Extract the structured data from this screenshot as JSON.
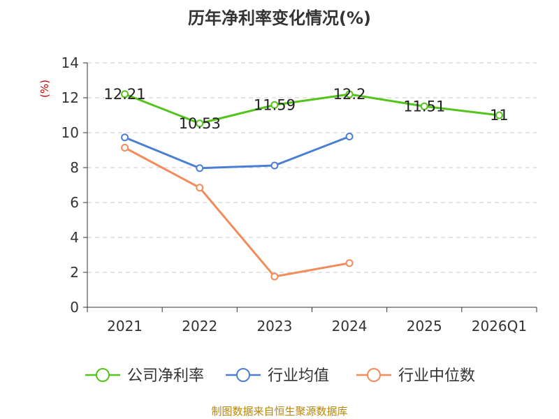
{
  "chart_data": {
    "type": "line",
    "title": "历年净利率变化情况(%)",
    "ylabel": "(%)",
    "categories": [
      "2021",
      "2022",
      "2023",
      "2024",
      "2025",
      "2026Q1"
    ],
    "ylim": [
      0,
      14
    ],
    "yticks": [
      0,
      2,
      4,
      6,
      8,
      10,
      12,
      14
    ],
    "grid": true,
    "legend_position": "bottom",
    "series": [
      {
        "name": "公司净利率",
        "color": "#52c41a",
        "values": [
          12.21,
          10.53,
          11.59,
          12.2,
          11.51,
          11
        ],
        "labels": [
          "12.21",
          "10.53",
          "11.59",
          "12.2",
          "11.51",
          "11"
        ]
      },
      {
        "name": "行业均值",
        "color": "#4a7fd4",
        "values": [
          9.73,
          7.97,
          8.12,
          9.78,
          null,
          null
        ],
        "labels": []
      },
      {
        "name": "行业中位数",
        "color": "#f28c5a",
        "values": [
          9.14,
          6.85,
          1.76,
          2.53,
          null,
          null
        ],
        "labels": []
      }
    ]
  },
  "source": "制图数据来自恒生聚源数据库"
}
